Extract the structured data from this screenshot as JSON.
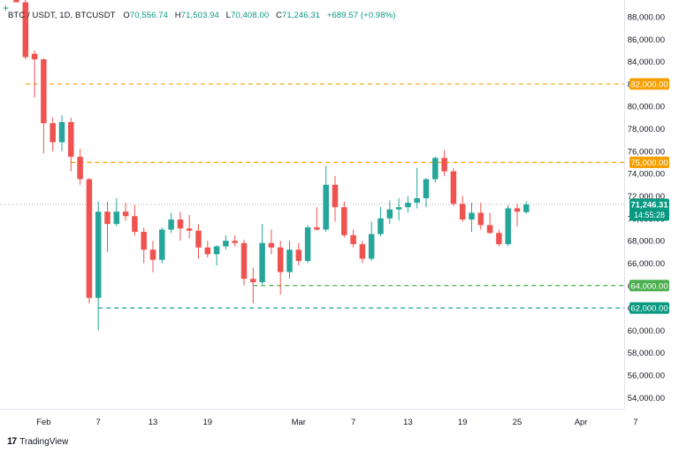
{
  "header": {
    "symbol": "BTC / USDT, 1D, BTCUSDT",
    "o_label": "O",
    "o_value": "70,556.74",
    "h_label": "H",
    "h_value": "71,503.94",
    "l_label": "L",
    "l_value": "70,408.00",
    "c_label": "C",
    "c_value": "71,246.31",
    "change": "+689.57 (+0.98%)"
  },
  "footer": {
    "logo_text": "17",
    "brand": "TradingView"
  },
  "colors": {
    "up": "#26a69a",
    "down": "#ef5350",
    "orange": "#f59f00",
    "green": "#4caf50",
    "teal": "#089981"
  },
  "chart_data": {
    "type": "candlestick",
    "ylim": [
      53000,
      89500
    ],
    "y_ticks": [
      {
        "value": 88000,
        "label": "88,000.00"
      },
      {
        "value": 86000,
        "label": "86,000.00"
      },
      {
        "value": 84000,
        "label": "84,000.00"
      },
      {
        "value": 82000,
        "label": "82,000.00"
      },
      {
        "value": 80000,
        "label": "80,000.00"
      },
      {
        "value": 78000,
        "label": "78,000.00"
      },
      {
        "value": 76000,
        "label": "76,000.00"
      },
      {
        "value": 74000,
        "label": "74,000.00"
      },
      {
        "value": 72000,
        "label": "72,000.00"
      },
      {
        "value": 70000,
        "label": "70,000.00"
      },
      {
        "value": 68000,
        "label": "68,000.00"
      },
      {
        "value": 66000,
        "label": "66,000.00"
      },
      {
        "value": 64000,
        "label": "64,000.00"
      },
      {
        "value": 62000,
        "label": "62,000.00"
      },
      {
        "value": 60000,
        "label": "60,000.00"
      },
      {
        "value": 58000,
        "label": "58,000.00"
      },
      {
        "value": 56000,
        "label": "56,000.00"
      },
      {
        "value": 54000,
        "label": "54,000.00"
      }
    ],
    "x_ticks": [
      {
        "index": 3,
        "label": "Feb"
      },
      {
        "index": 9,
        "label": "7"
      },
      {
        "index": 15,
        "label": "13"
      },
      {
        "index": 21,
        "label": "19"
      },
      {
        "index": 31,
        "label": "Mar"
      },
      {
        "index": 37,
        "label": "7"
      },
      {
        "index": 43,
        "label": "13"
      },
      {
        "index": 49,
        "label": "19"
      },
      {
        "index": 55,
        "label": "25"
      },
      {
        "index": 62,
        "label": "Apr"
      },
      {
        "index": 68,
        "label": "7"
      }
    ],
    "candles": [
      {
        "o": 89800,
        "h": 91500,
        "l": 89300,
        "c": 89300
      },
      {
        "o": 89300,
        "h": 89600,
        "l": 84200,
        "c": 84400
      },
      {
        "o": 84700,
        "h": 85000,
        "l": 80800,
        "c": 84200
      },
      {
        "o": 84200,
        "h": 84300,
        "l": 75800,
        "c": 78500
      },
      {
        "o": 78500,
        "h": 79000,
        "l": 76000,
        "c": 76800
      },
      {
        "o": 76800,
        "h": 79200,
        "l": 76000,
        "c": 78600
      },
      {
        "o": 78600,
        "h": 79000,
        "l": 74200,
        "c": 75500
      },
      {
        "o": 75500,
        "h": 76200,
        "l": 73000,
        "c": 73500
      },
      {
        "o": 73500,
        "h": 73600,
        "l": 62400,
        "c": 62900
      },
      {
        "o": 62900,
        "h": 71500,
        "l": 60000,
        "c": 70600
      },
      {
        "o": 70600,
        "h": 71500,
        "l": 67000,
        "c": 69500
      },
      {
        "o": 69500,
        "h": 71800,
        "l": 69300,
        "c": 70600
      },
      {
        "o": 70600,
        "h": 71400,
        "l": 69800,
        "c": 70200
      },
      {
        "o": 70200,
        "h": 71200,
        "l": 68500,
        "c": 68800
      },
      {
        "o": 68800,
        "h": 69200,
        "l": 66000,
        "c": 67200
      },
      {
        "o": 67200,
        "h": 68000,
        "l": 65200,
        "c": 66300
      },
      {
        "o": 66300,
        "h": 69200,
        "l": 66000,
        "c": 69000
      },
      {
        "o": 69000,
        "h": 70500,
        "l": 68700,
        "c": 69900
      },
      {
        "o": 69900,
        "h": 70600,
        "l": 68000,
        "c": 69100
      },
      {
        "o": 69100,
        "h": 70300,
        "l": 68200,
        "c": 68900
      },
      {
        "o": 68900,
        "h": 69500,
        "l": 66400,
        "c": 67400
      },
      {
        "o": 67400,
        "h": 68000,
        "l": 66500,
        "c": 66800
      },
      {
        "o": 66800,
        "h": 67600,
        "l": 65800,
        "c": 67500
      },
      {
        "o": 67500,
        "h": 68500,
        "l": 67200,
        "c": 68000
      },
      {
        "o": 68000,
        "h": 68500,
        "l": 67500,
        "c": 67800
      },
      {
        "o": 67800,
        "h": 68100,
        "l": 64000,
        "c": 64600
      },
      {
        "o": 64600,
        "h": 65600,
        "l": 62400,
        "c": 64300
      },
      {
        "o": 64300,
        "h": 69500,
        "l": 64100,
        "c": 67800
      },
      {
        "o": 67800,
        "h": 69000,
        "l": 66800,
        "c": 67400
      },
      {
        "o": 67400,
        "h": 68000,
        "l": 63200,
        "c": 65200
      },
      {
        "o": 65200,
        "h": 68000,
        "l": 64600,
        "c": 67200
      },
      {
        "o": 67200,
        "h": 67800,
        "l": 65800,
        "c": 66200
      },
      {
        "o": 66200,
        "h": 69400,
        "l": 66000,
        "c": 69200
      },
      {
        "o": 69200,
        "h": 71000,
        "l": 68900,
        "c": 69000
      },
      {
        "o": 69000,
        "h": 74700,
        "l": 68800,
        "c": 73000
      },
      {
        "o": 73000,
        "h": 73800,
        "l": 69700,
        "c": 71000
      },
      {
        "o": 71000,
        "h": 71500,
        "l": 68300,
        "c": 68500
      },
      {
        "o": 68500,
        "h": 69000,
        "l": 67400,
        "c": 67700
      },
      {
        "o": 67700,
        "h": 68000,
        "l": 66000,
        "c": 66400
      },
      {
        "o": 66400,
        "h": 69700,
        "l": 66200,
        "c": 68600
      },
      {
        "o": 68600,
        "h": 71000,
        "l": 68400,
        "c": 70000
      },
      {
        "o": 70000,
        "h": 71600,
        "l": 69500,
        "c": 70800
      },
      {
        "o": 70800,
        "h": 71800,
        "l": 69800,
        "c": 71000
      },
      {
        "o": 71000,
        "h": 72000,
        "l": 70500,
        "c": 71400
      },
      {
        "o": 71400,
        "h": 74500,
        "l": 70900,
        "c": 71800
      },
      {
        "o": 71800,
        "h": 73600,
        "l": 71000,
        "c": 73500
      },
      {
        "o": 73500,
        "h": 75500,
        "l": 73200,
        "c": 75400
      },
      {
        "o": 75400,
        "h": 76100,
        "l": 73800,
        "c": 74200
      },
      {
        "o": 74200,
        "h": 74500,
        "l": 71100,
        "c": 71300
      },
      {
        "o": 71300,
        "h": 72000,
        "l": 69700,
        "c": 69900
      },
      {
        "o": 69900,
        "h": 71400,
        "l": 68800,
        "c": 70500
      },
      {
        "o": 70500,
        "h": 71400,
        "l": 69000,
        "c": 69400
      },
      {
        "o": 69400,
        "h": 70500,
        "l": 68600,
        "c": 68700
      },
      {
        "o": 68700,
        "h": 69000,
        "l": 67500,
        "c": 67700
      },
      {
        "o": 67700,
        "h": 71200,
        "l": 67500,
        "c": 70900
      },
      {
        "o": 70900,
        "h": 71300,
        "l": 69300,
        "c": 70600
      },
      {
        "o": 70556.74,
        "h": 71503.94,
        "l": 70408.0,
        "c": 71246.31
      }
    ],
    "levels": [
      {
        "value": 82000,
        "label": "82,000.00",
        "color": "#f59f00",
        "start_index": 1
      },
      {
        "value": 75000,
        "label": "75,000.00",
        "color": "#f59f00",
        "start_index": 6
      },
      {
        "value": 64000,
        "label": "64,000.00",
        "color": "#4caf50",
        "start_index": 26
      },
      {
        "value": 62000,
        "label": "62,000.00",
        "color": "#089981",
        "start_index": 9
      }
    ],
    "last_price": {
      "value": 71246.31,
      "label": "71,246.31",
      "countdown": "14:55:28"
    }
  }
}
